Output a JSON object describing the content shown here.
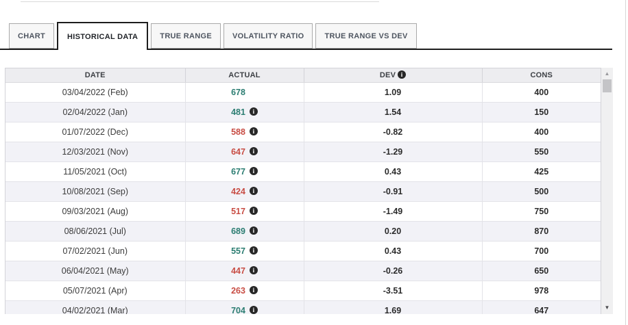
{
  "tabs": [
    {
      "label": "CHART",
      "active": false
    },
    {
      "label": "HISTORICAL DATA",
      "active": true
    },
    {
      "label": "TRUE RANGE",
      "active": false
    },
    {
      "label": "VOLATILITY RATIO",
      "active": false
    },
    {
      "label": "TRUE RANGE VS DEV",
      "active": false
    }
  ],
  "table": {
    "header": {
      "date": "DATE",
      "actual": "ACTUAL",
      "dev": "DEV",
      "cons": "CONS"
    },
    "rows": [
      {
        "date": "03/04/2022 (Feb)",
        "actual": "678",
        "color": "positive",
        "info": false,
        "dev": "1.09",
        "cons": "400"
      },
      {
        "date": "02/04/2022 (Jan)",
        "actual": "481",
        "color": "positive",
        "info": true,
        "dev": "1.54",
        "cons": "150"
      },
      {
        "date": "01/07/2022 (Dec)",
        "actual": "588",
        "color": "negative",
        "info": true,
        "dev": "-0.82",
        "cons": "400"
      },
      {
        "date": "12/03/2021 (Nov)",
        "actual": "647",
        "color": "negative",
        "info": true,
        "dev": "-1.29",
        "cons": "550"
      },
      {
        "date": "11/05/2021 (Oct)",
        "actual": "677",
        "color": "positive",
        "info": true,
        "dev": "0.43",
        "cons": "425"
      },
      {
        "date": "10/08/2021 (Sep)",
        "actual": "424",
        "color": "negative",
        "info": true,
        "dev": "-0.91",
        "cons": "500"
      },
      {
        "date": "09/03/2021 (Aug)",
        "actual": "517",
        "color": "negative",
        "info": true,
        "dev": "-1.49",
        "cons": "750"
      },
      {
        "date": "08/06/2021 (Jul)",
        "actual": "689",
        "color": "positive",
        "info": true,
        "dev": "0.20",
        "cons": "870"
      },
      {
        "date": "07/02/2021 (Jun)",
        "actual": "557",
        "color": "positive",
        "info": true,
        "dev": "0.43",
        "cons": "700"
      },
      {
        "date": "06/04/2021 (May)",
        "actual": "447",
        "color": "negative",
        "info": true,
        "dev": "-0.26",
        "cons": "650"
      },
      {
        "date": "05/07/2021 (Apr)",
        "actual": "263",
        "color": "negative",
        "info": true,
        "dev": "-3.51",
        "cons": "978"
      },
      {
        "date": "04/02/2021 (Mar)",
        "actual": "704",
        "color": "positive",
        "info": true,
        "dev": "1.69",
        "cons": "647"
      }
    ]
  },
  "icons": {
    "info": "i",
    "scroll_up": "▲",
    "scroll_down": "▼"
  },
  "colors": {
    "positive": "#2c7d72",
    "negative": "#c84d44",
    "active_tab_border": "#1d1d1d"
  }
}
